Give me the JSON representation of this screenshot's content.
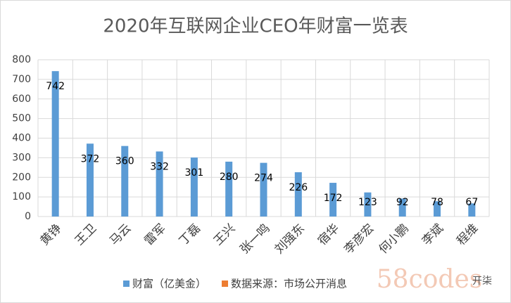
{
  "chart_data": {
    "type": "bar",
    "title": "2020年互联网企业CEO年财富一览表",
    "categories": [
      "黄铮",
      "王卫",
      "马云",
      "雷军",
      "丁磊",
      "王兴",
      "张一鸣",
      "刘强东",
      "宿华",
      "李彦宏",
      "何小鹏",
      "李斌",
      "程维"
    ],
    "series": [
      {
        "name": "财富（亿美金）",
        "color": "#5b9bd5",
        "values": [
          742,
          372,
          360,
          332,
          301,
          280,
          274,
          226,
          172,
          123,
          92,
          78,
          67
        ]
      },
      {
        "name": "数据来源：市场公开消息",
        "color": "#ed7d31",
        "values": [
          null,
          null,
          null,
          null,
          null,
          null,
          null,
          null,
          null,
          null,
          null,
          null,
          null
        ]
      }
    ],
    "ylim": [
      0,
      800
    ],
    "yticks": [
      0,
      100,
      200,
      300,
      400,
      500,
      600,
      700,
      800
    ],
    "grid": true,
    "watermark": [
      "58codes",
      "开柒"
    ]
  }
}
